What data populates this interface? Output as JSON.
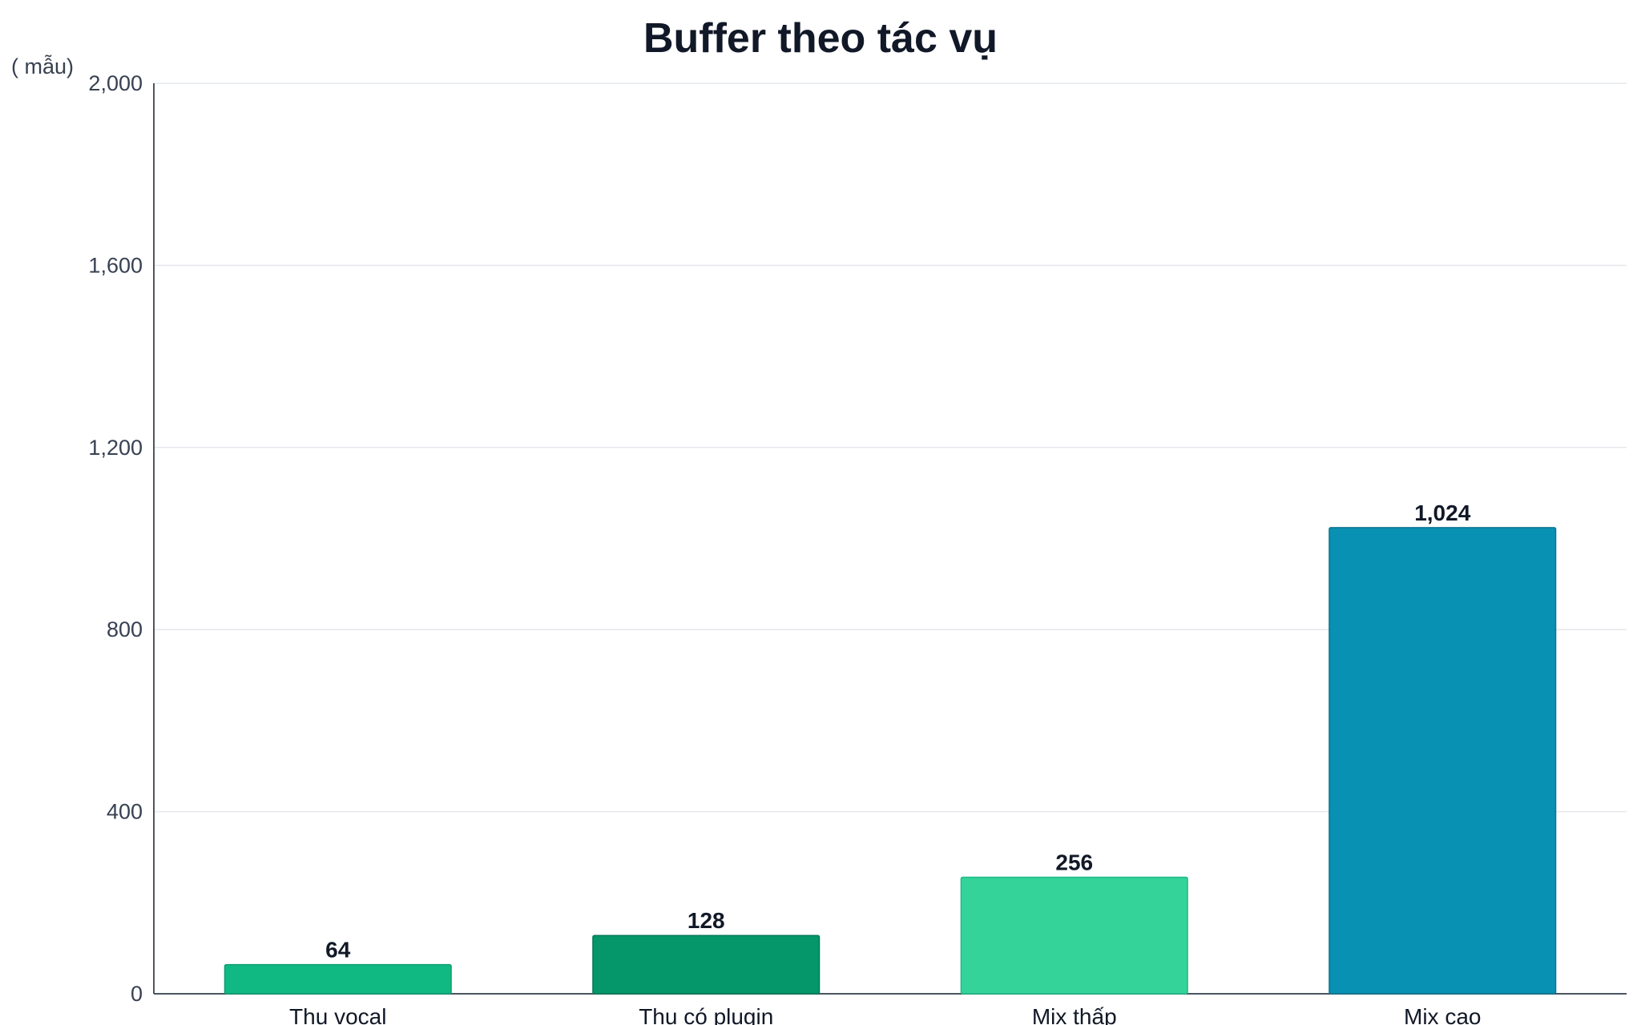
{
  "chart_data": {
    "type": "bar",
    "title": "Buffer theo tác vụ",
    "xlabel": "",
    "ylabel": "( mẫu)",
    "categories": [
      "Thu vocal",
      "Thu có plugin",
      "Mix thấp",
      "Mix cao"
    ],
    "values": [
      64,
      128,
      256,
      1024
    ],
    "value_labels": [
      "64",
      "128",
      "256",
      "1,024"
    ],
    "ylim": [
      0,
      2000
    ],
    "yticks": [
      0,
      400,
      800,
      1200,
      1600,
      2000
    ],
    "ytick_labels": [
      "0",
      "400",
      "800",
      "1,200",
      "1,600",
      "2,000"
    ],
    "grid": true,
    "legend": "none",
    "colors": [
      "#10b981",
      "#059669",
      "#34d399",
      "#0891b2"
    ],
    "border_colors": [
      "#0f9e72",
      "#047857",
      "#1fb888",
      "#0e7490"
    ]
  }
}
